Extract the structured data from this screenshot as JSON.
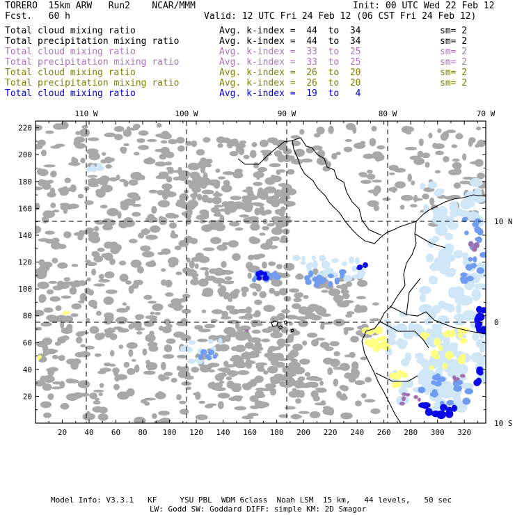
{
  "header": {
    "model": "TORERO  15km ARW   Run2    NCAR/MMM",
    "init": "Init: 00 UTC Wed 22 Feb 12",
    "fcst": "Fcst.   60 h",
    "valid": "Valid: 12 UTC Fri 24 Feb 12 (06 CST Fri 24 Feb 12)"
  },
  "fields": [
    {
      "label": "Total cloud mixing ratio",
      "index": "Avg. k-index =  44  to  34",
      "sm": "sm= 2",
      "color": "#000000"
    },
    {
      "label": "Total precipitation mixing ratio",
      "index": "Avg. k-index =  44  to  34",
      "sm": "sm= 2",
      "color": "#000000"
    },
    {
      "label": "Total cloud mixing ratio",
      "index": "Avg. k-index =  33  to  25",
      "sm": "sm= 2",
      "color": "#b070c0"
    },
    {
      "label": "Total precipitation mixing ratio",
      "index": "Avg. k-index =  33  to  25",
      "sm": "sm= 2",
      "color": "#b070c0"
    },
    {
      "label": "Total cloud mixing ratio",
      "index": "Avg. k-index =  26  to  20",
      "sm": "sm= 2",
      "color": "#808000"
    },
    {
      "label": "Total precipitation mixing ratio",
      "index": "Avg. k-index =  26  to  20",
      "sm": "sm= 2",
      "color": "#808000"
    },
    {
      "label": "Total cloud mixing ratio",
      "index": "Avg. k-index =  19  to   4",
      "sm": "",
      "color": "#0000e0"
    }
  ],
  "map": {
    "lon_labels": [
      "110 W",
      "100 W",
      "90 W",
      "80 W",
      "70 W"
    ],
    "lat_labels": [
      "10 N",
      "0",
      "10 S"
    ],
    "x_ticks": [
      "20",
      "40",
      "60",
      "80",
      "100",
      "120",
      "140",
      "160",
      "180",
      "200",
      "220",
      "240",
      "260",
      "280",
      "300",
      "320"
    ],
    "y_ticks": [
      "20",
      "40",
      "60",
      "80",
      "100",
      "120",
      "140",
      "160",
      "180",
      "200",
      "220"
    ],
    "colors": {
      "gray_cloud": "#a8a8a8",
      "light_blue": "#cfe6f7",
      "mid_blue": "#6f9cf0",
      "dark_blue": "#0a0ae8",
      "yellow": "#ffff80",
      "purple": "#a070b0",
      "coast": "#000000"
    }
  },
  "footer": {
    "line1": "Model Info: V3.3.1   KF     YSU PBL  WDM 6class  Noah LSM  15 km,   44 levels,   50 sec",
    "line2": "LW: Godd SW: Goddard DIFF: simple KM: 2D Smagor"
  }
}
